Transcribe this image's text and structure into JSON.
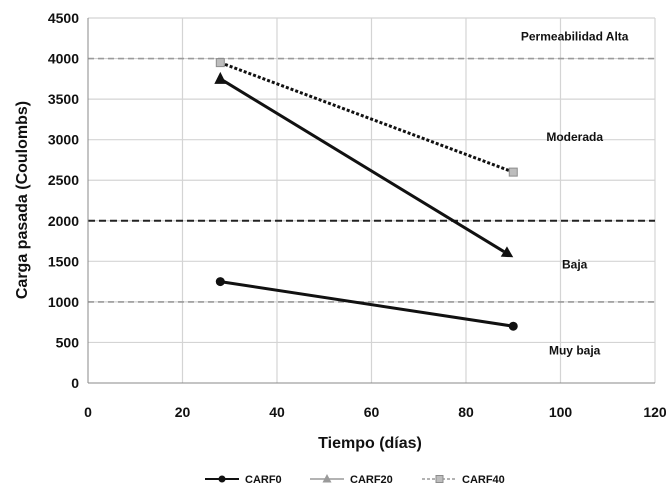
{
  "chart_data": {
    "type": "line",
    "xlabel": "Tiempo (días)",
    "ylabel": "Carga pasada (Coulombs)",
    "xlim": [
      0,
      120
    ],
    "ylim": [
      0,
      4500
    ],
    "x_ticks": [
      0,
      20,
      40,
      60,
      80,
      100,
      120
    ],
    "y_ticks": [
      0,
      500,
      1000,
      1500,
      2000,
      2500,
      3000,
      3500,
      4000,
      4500
    ],
    "grid": true,
    "legend_position": "bottom",
    "series": [
      {
        "name": "CARF0",
        "x": [
          28,
          90
        ],
        "y": [
          1250,
          700
        ],
        "style": "solid",
        "marker": "circle",
        "color": "#111111"
      },
      {
        "name": "CARF20",
        "x": [
          28,
          90
        ],
        "y": [
          3750,
          1550
        ],
        "style": "solid",
        "marker": "triangle",
        "color": "#111111"
      },
      {
        "name": "CARF40",
        "x": [
          28,
          90
        ],
        "y": [
          3950,
          2600
        ],
        "style": "dotted",
        "marker": "square",
        "color": "#111111"
      }
    ],
    "thresholds": [
      {
        "y": 4000,
        "style": "dashed-light"
      },
      {
        "y": 2000,
        "style": "dashed-dark"
      },
      {
        "y": 1000,
        "style": "dashed-light"
      }
    ],
    "zone_labels": [
      {
        "text": "Permeabilidad Alta",
        "x": 103,
        "y": 4270
      },
      {
        "text": "Moderada",
        "x": 103,
        "y": 3030
      },
      {
        "text": "Baja",
        "x": 103,
        "y": 1460
      },
      {
        "text": "Muy baja",
        "x": 103,
        "y": 400
      }
    ]
  }
}
